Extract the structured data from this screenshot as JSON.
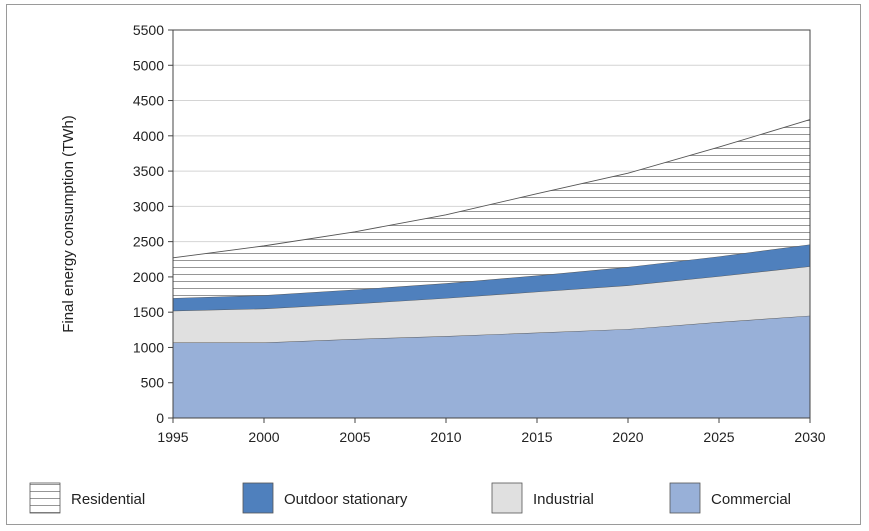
{
  "chart_data": {
    "type": "area",
    "stacked": true,
    "title": "",
    "xlabel": "",
    "ylabel": "Final energy consumption (TWh)",
    "x": [
      1995,
      2000,
      2005,
      2010,
      2015,
      2020,
      2025,
      2030
    ],
    "xlim": [
      1995,
      2030
    ],
    "ylim": [
      0,
      5500
    ],
    "x_ticks": [
      "1995",
      "2000",
      "2005",
      "2010",
      "2015",
      "2020",
      "2025",
      "2030"
    ],
    "y_ticks": [
      "0",
      "500",
      "1000",
      "1500",
      "2000",
      "2500",
      "3000",
      "3500",
      "4000",
      "4500",
      "5000",
      "5500"
    ],
    "grid": true,
    "legend_position": "bottom",
    "series": [
      {
        "name": "Commercial",
        "color": "#98b0d8",
        "values": [
          1070,
          1070,
          1120,
          1160,
          1210,
          1260,
          1360,
          1450
        ]
      },
      {
        "name": "Industrial",
        "color": "#e0e0e0",
        "values": [
          450,
          480,
          500,
          540,
          580,
          620,
          650,
          700
        ]
      },
      {
        "name": "Outdoor stationary",
        "color": "#4f80bd",
        "values": [
          180,
          190,
          200,
          210,
          230,
          260,
          280,
          310
        ]
      },
      {
        "name": "Residential",
        "color": "#ffffff",
        "pattern": "horizontal-lines",
        "values": [
          570,
          700,
          820,
          970,
          1160,
          1330,
          1550,
          1770
        ]
      }
    ],
    "legend_order": [
      "Residential",
      "Outdoor stationary",
      "Industrial",
      "Commercial"
    ]
  }
}
